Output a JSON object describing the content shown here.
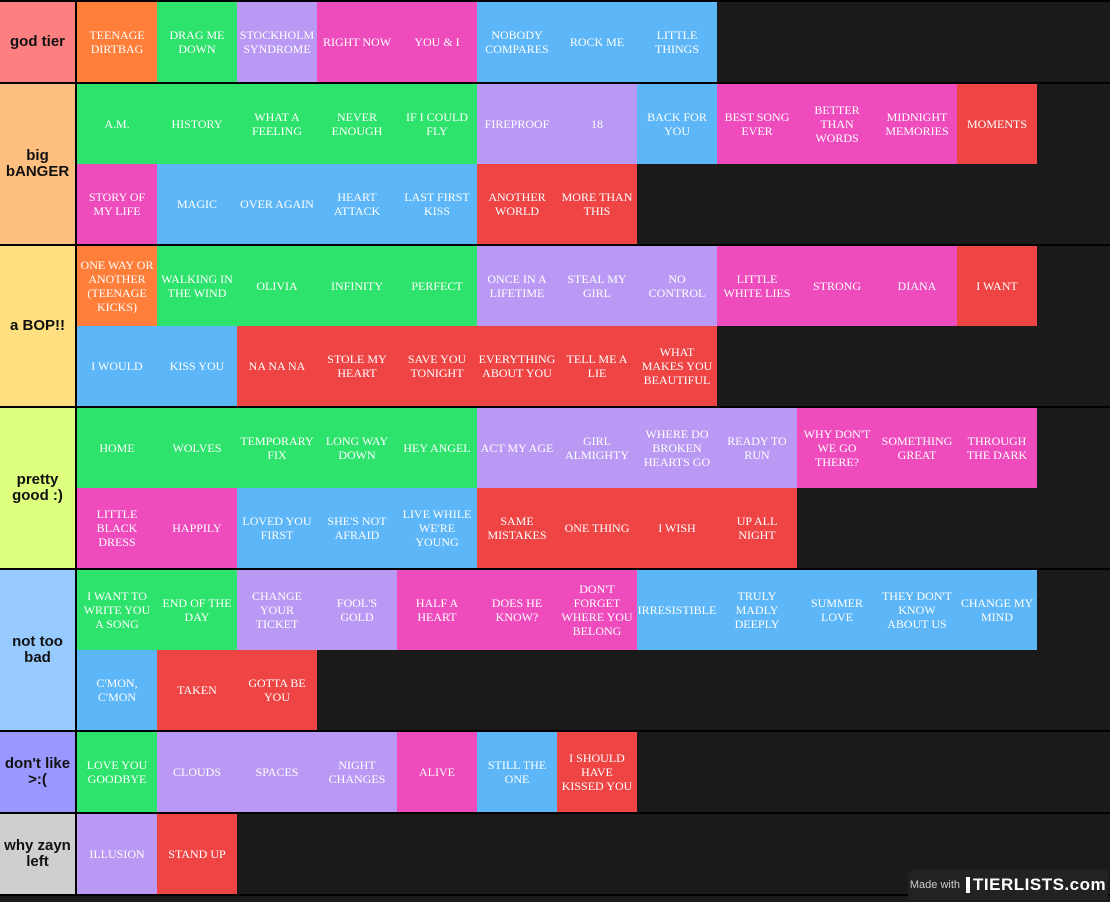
{
  "colors": {
    "orange": "#fe7e3a",
    "green": "#2ee36b",
    "lavender": "#b999f3",
    "pink": "#ee4bbd",
    "blue": "#5cb6f7",
    "red": "#ef4444"
  },
  "tiers": [
    {
      "label": "god tier",
      "color": "#fe7f7f",
      "items": [
        {
          "name": "TEENAGE DIRTBAG",
          "color": "orange"
        },
        {
          "name": "DRAG ME DOWN",
          "color": "green"
        },
        {
          "name": "STOCKHOLM SYNDROME",
          "color": "lavender"
        },
        {
          "name": "RIGHT NOW",
          "color": "pink"
        },
        {
          "name": "YOU & I",
          "color": "pink"
        },
        {
          "name": "NOBODY COMPARES",
          "color": "blue"
        },
        {
          "name": "ROCK ME",
          "color": "blue"
        },
        {
          "name": "LITTLE THINGS",
          "color": "blue"
        }
      ]
    },
    {
      "label": "big bANGER",
      "color": "#ffbf7f",
      "items": [
        {
          "name": "A.M.",
          "color": "green"
        },
        {
          "name": "HISTORY",
          "color": "green"
        },
        {
          "name": "WHAT A FEELING",
          "color": "green"
        },
        {
          "name": "NEVER ENOUGH",
          "color": "green"
        },
        {
          "name": "IF I COULD FLY",
          "color": "green"
        },
        {
          "name": "FIREPROOF",
          "color": "lavender"
        },
        {
          "name": "18",
          "color": "lavender"
        },
        {
          "name": "BACK FOR YOU",
          "color": "blue"
        },
        {
          "name": "BEST SONG EVER",
          "color": "pink"
        },
        {
          "name": "BETTER THAN WORDS",
          "color": "pink"
        },
        {
          "name": "MIDNIGHT MEMORIES",
          "color": "pink"
        },
        {
          "name": "MOMENTS",
          "color": "red"
        },
        {
          "name": "STORY OF MY LIFE",
          "color": "pink"
        },
        {
          "name": "MAGIC",
          "color": "blue"
        },
        {
          "name": "OVER AGAIN",
          "color": "blue"
        },
        {
          "name": "HEART ATTACK",
          "color": "blue"
        },
        {
          "name": "LAST FIRST KISS",
          "color": "blue"
        },
        {
          "name": "ANOTHER WORLD",
          "color": "red"
        },
        {
          "name": "MORE THAN THIS",
          "color": "red"
        }
      ]
    },
    {
      "label": "a BOP!!",
      "color": "#ffdf7f",
      "items": [
        {
          "name": "ONE WAY OR ANOTHER (TEENAGE KICKS)",
          "color": "orange"
        },
        {
          "name": "WALKING IN THE WIND",
          "color": "green"
        },
        {
          "name": "OLIVIA",
          "color": "green"
        },
        {
          "name": "INFINITY",
          "color": "green"
        },
        {
          "name": "PERFECT",
          "color": "green"
        },
        {
          "name": "ONCE IN A LIFETIME",
          "color": "lavender"
        },
        {
          "name": "STEAL MY GIRL",
          "color": "lavender"
        },
        {
          "name": "NO CONTROL",
          "color": "lavender"
        },
        {
          "name": "LITTLE WHITE LIES",
          "color": "pink"
        },
        {
          "name": "STRONG",
          "color": "pink"
        },
        {
          "name": "DIANA",
          "color": "pink"
        },
        {
          "name": "I WANT",
          "color": "red"
        },
        {
          "name": "I WOULD",
          "color": "blue"
        },
        {
          "name": "KISS YOU",
          "color": "blue"
        },
        {
          "name": "NA NA NA",
          "color": "red"
        },
        {
          "name": "STOLE MY HEART",
          "color": "red"
        },
        {
          "name": "SAVE YOU TONIGHT",
          "color": "red"
        },
        {
          "name": "EVERYTHING ABOUT YOU",
          "color": "red"
        },
        {
          "name": "TELL ME A LIE",
          "color": "red"
        },
        {
          "name": "WHAT MAKES YOU BEAUTIFUL",
          "color": "red"
        }
      ]
    },
    {
      "label": "pretty good :)",
      "color": "#dfff7f",
      "items": [
        {
          "name": "HOME",
          "color": "green"
        },
        {
          "name": "WOLVES",
          "color": "green"
        },
        {
          "name": "TEMPORARY FIX",
          "color": "green"
        },
        {
          "name": "LONG WAY DOWN",
          "color": "green"
        },
        {
          "name": "HEY ANGEL",
          "color": "green"
        },
        {
          "name": "ACT MY AGE",
          "color": "lavender"
        },
        {
          "name": "GIRL ALMIGHTY",
          "color": "lavender"
        },
        {
          "name": "WHERE DO BROKEN HEARTS GO",
          "color": "lavender"
        },
        {
          "name": "READY TO RUN",
          "color": "lavender"
        },
        {
          "name": "WHY DON'T WE GO THERE?",
          "color": "pink"
        },
        {
          "name": "SOMETHING GREAT",
          "color": "pink"
        },
        {
          "name": "THROUGH THE DARK",
          "color": "pink"
        },
        {
          "name": "LITTLE BLACK DRESS",
          "color": "pink"
        },
        {
          "name": "HAPPILY",
          "color": "pink"
        },
        {
          "name": "LOVED YOU FIRST",
          "color": "blue"
        },
        {
          "name": "SHE'S NOT AFRAID",
          "color": "blue"
        },
        {
          "name": "LIVE WHILE WE'RE YOUNG",
          "color": "blue"
        },
        {
          "name": "SAME MISTAKES",
          "color": "red"
        },
        {
          "name": "ONE THING",
          "color": "red"
        },
        {
          "name": "I WISH",
          "color": "red"
        },
        {
          "name": "UP ALL NIGHT",
          "color": "red"
        }
      ]
    },
    {
      "label": "not too bad",
      "color": "#97cbff",
      "items": [
        {
          "name": "I WANT TO WRITE YOU A SONG",
          "color": "green"
        },
        {
          "name": "END OF THE DAY",
          "color": "green"
        },
        {
          "name": "CHANGE YOUR TICKET",
          "color": "lavender"
        },
        {
          "name": "FOOL'S GOLD",
          "color": "lavender"
        },
        {
          "name": "HALF A HEART",
          "color": "pink"
        },
        {
          "name": "DOES HE KNOW?",
          "color": "pink"
        },
        {
          "name": "DON'T FORGET WHERE YOU BELONG",
          "color": "pink"
        },
        {
          "name": "IRRESISTIBLE",
          "color": "blue"
        },
        {
          "name": "TRULY MADLY DEEPLY",
          "color": "blue"
        },
        {
          "name": "SUMMER LOVE",
          "color": "blue"
        },
        {
          "name": "THEY DON'T KNOW ABOUT US",
          "color": "blue"
        },
        {
          "name": "CHANGE MY MIND",
          "color": "blue"
        },
        {
          "name": "C'MON, C'MON",
          "color": "blue"
        },
        {
          "name": "TAKEN",
          "color": "red"
        },
        {
          "name": "GOTTA BE YOU",
          "color": "red"
        }
      ]
    },
    {
      "label": "don't like >:(",
      "color": "#9a98ff",
      "items": [
        {
          "name": "LOVE YOU GOODBYE",
          "color": "green"
        },
        {
          "name": "CLOUDS",
          "color": "lavender"
        },
        {
          "name": "SPACES",
          "color": "lavender"
        },
        {
          "name": "NIGHT CHANGES",
          "color": "lavender"
        },
        {
          "name": "ALIVE",
          "color": "pink"
        },
        {
          "name": "STILL THE ONE",
          "color": "blue"
        },
        {
          "name": "I SHOULD HAVE KISSED YOU",
          "color": "red"
        }
      ]
    },
    {
      "label": "why zayn left",
      "color": "#cfcfcf",
      "items": [
        {
          "name": "ILLUSION",
          "color": "lavender"
        },
        {
          "name": "STAND UP",
          "color": "red"
        }
      ]
    }
  ],
  "watermark": {
    "made_with": "Made with",
    "brand": "TIERLISTS.com"
  }
}
